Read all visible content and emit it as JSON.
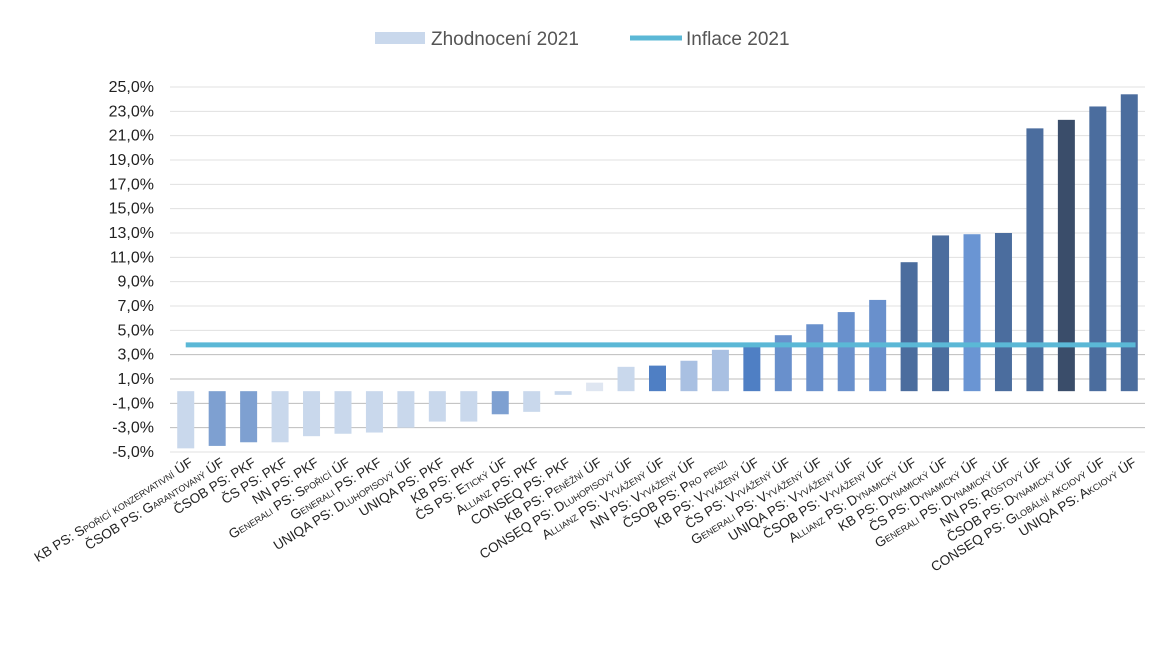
{
  "chart_data": {
    "type": "bar",
    "categories": [
      "KB PS: Spořicí konzervativní ÚF",
      "ČSOB PS: Garantovaný ÚF",
      "ČSOB PS: PKF",
      "ČS PS: PKF",
      "NN PS: PKF",
      "Generali PS: Spořicí ÚF",
      "Generali PS: PKF",
      "UNIQA PS: Dluhopisový ÚF",
      "UNIQA PS: PKF",
      "KB PS: PKF",
      "ČS PS: Etický ÚF",
      "Allianz PS: PKF",
      "CONSEQ PS: PKF",
      "KB PS: Peněžní ÚF",
      "CONSEQ PS: Dluhopisový ÚF",
      "Allianz PS: Vyvážený ÚF",
      "NN PS: Vyvážený ÚF",
      "ČSOB PS: Pro penzi",
      "KB PS: Vyvážený ÚF",
      "ČS PS: Vyvážený ÚF",
      "Generali PS: Vyvážený ÚF",
      "UNIQA PS: Vyvážený ÚF",
      "ČSOB PS: Vyvážený ÚF",
      "Allianz PS: Dynamický ÚF",
      "KB PS: Dynamický ÚF",
      "ČS PS: Dynamický ÚF",
      "Generali PS: Dynamický ÚF",
      "NN PS: Růstový ÚF",
      "ČSOB PS: Dynamický ÚF",
      "CONSEQ PS: Globální akciový ÚF",
      "UNIQA PS: Akciový ÚF"
    ],
    "series": [
      {
        "name": "Zhodnocení 2021",
        "values": [
          -4.7,
          -4.5,
          -4.2,
          -4.2,
          -3.7,
          -3.5,
          -3.4,
          -3.0,
          -2.5,
          -2.5,
          -1.9,
          -1.7,
          -0.3,
          0.7,
          2.0,
          2.1,
          2.5,
          3.4,
          3.8,
          4.6,
          5.5,
          6.5,
          7.5,
          10.6,
          12.8,
          12.9,
          13.0,
          21.6,
          22.3,
          23.4,
          24.4
        ],
        "colors": [
          "#c9d8ec",
          "#7ea0d1",
          "#7ea0d1",
          "#c9d8ec",
          "#c9d8ec",
          "#c9d8ec",
          "#c9d8ec",
          "#c9d8ec",
          "#c9d8ec",
          "#c9d8ec",
          "#7ea0d1",
          "#c9d8ec",
          "#c9d8ec",
          "#dfe6f1",
          "#c9d8ec",
          "#4f7fc4",
          "#a9c0e2",
          "#a9c0e2",
          "#4f7fc4",
          "#6990cc",
          "#6990cc",
          "#6990cc",
          "#6990cc",
          "#4b6d9e",
          "#4b6d9e",
          "#6a95d3",
          "#4b6d9e",
          "#4b6d9e",
          "#3a4d6a",
          "#4b6d9e",
          "#4b6d9e"
        ]
      },
      {
        "name": "Inflace 2021",
        "type": "line",
        "value": 3.8,
        "color": "#5bb8d6"
      }
    ],
    "y_ticks": [
      "25,0%",
      "23,0%",
      "21,0%",
      "19,0%",
      "17,0%",
      "15,0%",
      "13,0%",
      "11,0%",
      "9,0%",
      "7,0%",
      "5,0%",
      "3,0%",
      "1,0%",
      "-1,0%",
      "-3,0%",
      "-5,0%"
    ],
    "ylim": [
      -5,
      25
    ],
    "grid": true,
    "legend_position": "top",
    "legend_colors": {
      "bars": "#c9d8ec",
      "line": "#5bb8d6"
    }
  }
}
